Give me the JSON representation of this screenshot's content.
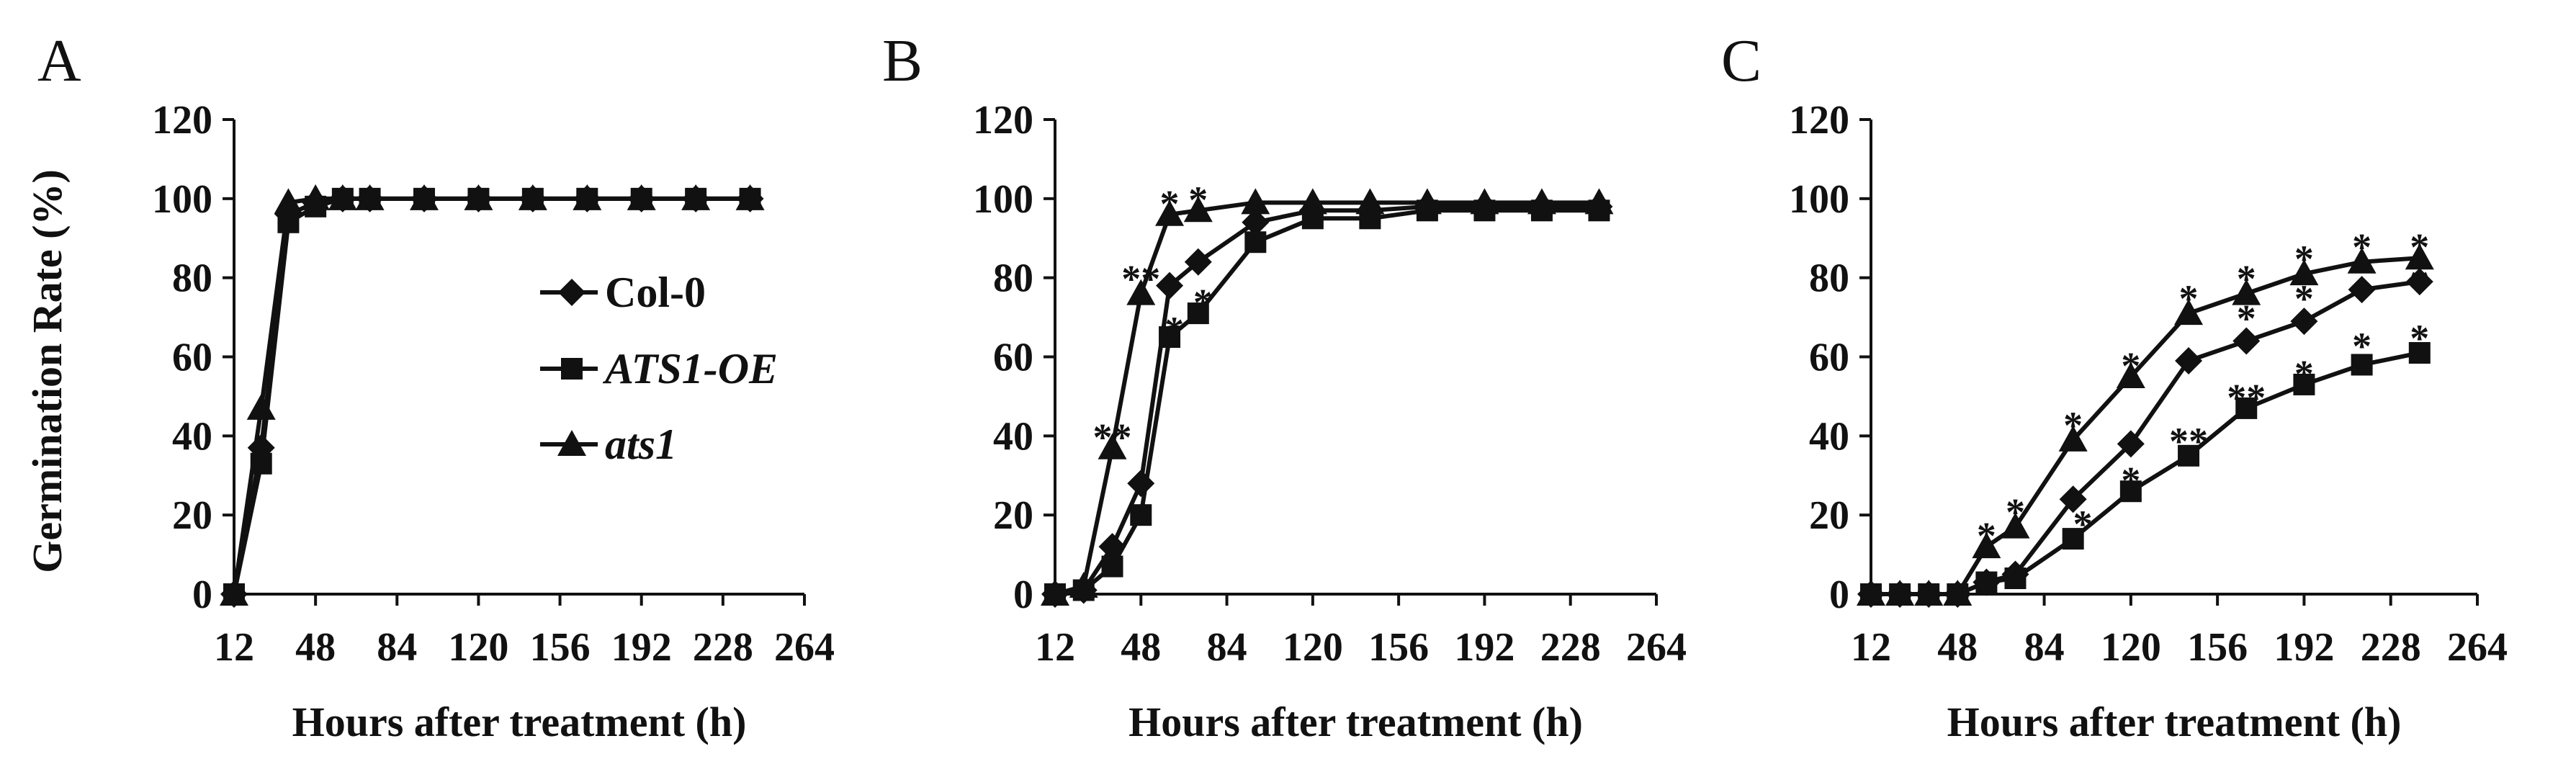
{
  "chart_data": [
    {
      "panel": "A",
      "type": "line",
      "ylabel": "Germination Rate (%)",
      "xlabel": "Hours after treatment (h)",
      "xlim": [
        12,
        264
      ],
      "ylim": [
        0,
        120
      ],
      "xticks": [
        "12",
        "48",
        "84",
        "120",
        "156",
        "192",
        "228",
        "264"
      ],
      "yticks": [
        "0",
        "20",
        "40",
        "60",
        "80",
        "100",
        "120"
      ],
      "legend": {
        "position": "center-left",
        "entries": [
          "Col-0",
          "ATS1-OE",
          "ats1"
        ]
      },
      "series": [
        {
          "name": "Col-0",
          "marker": "diamond",
          "x": [
            12,
            24,
            36,
            48,
            60,
            72,
            96,
            120,
            144,
            168,
            192,
            216,
            240
          ],
          "y": [
            0,
            37,
            96,
            99,
            100,
            100,
            100,
            100,
            100,
            100,
            100,
            100,
            100
          ]
        },
        {
          "name": "ATS1-OE",
          "marker": "square",
          "x": [
            12,
            24,
            36,
            48,
            60,
            72,
            96,
            120,
            144,
            168,
            192,
            216,
            240
          ],
          "y": [
            0,
            33,
            94,
            98,
            100,
            100,
            100,
            100,
            100,
            100,
            100,
            100,
            100
          ]
        },
        {
          "name": "ats1",
          "marker": "triangle",
          "x": [
            12,
            24,
            36,
            48,
            60,
            72,
            96,
            120,
            144,
            168,
            192,
            216,
            240
          ],
          "y": [
            0,
            47,
            99,
            100,
            100,
            100,
            100,
            100,
            100,
            100,
            100,
            100,
            100
          ]
        }
      ],
      "annotations": []
    },
    {
      "panel": "B",
      "type": "line",
      "xlabel": "Hours after treatment (h)",
      "xlim": [
        12,
        264
      ],
      "ylim": [
        0,
        120
      ],
      "xticks": [
        "12",
        "48",
        "84",
        "120",
        "156",
        "192",
        "228",
        "264"
      ],
      "yticks": [
        "0",
        "20",
        "40",
        "60",
        "80",
        "100",
        "120"
      ],
      "series": [
        {
          "name": "Col-0",
          "marker": "diamond",
          "x": [
            12,
            24,
            36,
            48,
            60,
            72,
            96,
            120,
            144,
            168,
            192,
            216,
            240
          ],
          "y": [
            0,
            1,
            12,
            28,
            78,
            84,
            94,
            97,
            97,
            98,
            98,
            98,
            98
          ]
        },
        {
          "name": "ATS1-OE",
          "marker": "square",
          "x": [
            12,
            24,
            36,
            48,
            60,
            72,
            96,
            120,
            144,
            168,
            192,
            216,
            240
          ],
          "y": [
            0,
            1,
            7,
            20,
            65,
            71,
            89,
            95,
            95,
            97,
            97,
            97,
            97
          ]
        },
        {
          "name": "ats1",
          "marker": "triangle",
          "x": [
            12,
            24,
            36,
            48,
            60,
            72,
            96,
            120,
            144,
            168,
            192,
            216,
            240
          ],
          "y": [
            0,
            2,
            37,
            76,
            96,
            97,
            99,
            99,
            99,
            99,
            99,
            99,
            99
          ]
        }
      ],
      "annotations": [
        {
          "text": "**",
          "x": 36,
          "y": 40
        },
        {
          "text": "**",
          "x": 48,
          "y": 80
        },
        {
          "text": "*",
          "x": 60,
          "y": 99
        },
        {
          "text": "*",
          "x": 72,
          "y": 100
        },
        {
          "text": "*",
          "x": 62,
          "y": 67
        },
        {
          "text": "*",
          "x": 74,
          "y": 74
        }
      ]
    },
    {
      "panel": "C",
      "type": "line",
      "xlabel": "Hours after treatment (h)",
      "xlim": [
        12,
        264
      ],
      "ylim": [
        0,
        120
      ],
      "xticks": [
        "12",
        "48",
        "84",
        "120",
        "156",
        "192",
        "228",
        "264"
      ],
      "yticks": [
        "0",
        "20",
        "40",
        "60",
        "80",
        "100",
        "120"
      ],
      "series": [
        {
          "name": "Col-0",
          "marker": "diamond",
          "x": [
            12,
            24,
            36,
            48,
            60,
            72,
            96,
            120,
            144,
            168,
            192,
            216,
            240
          ],
          "y": [
            0,
            0,
            0,
            0,
            3,
            5,
            24,
            38,
            59,
            64,
            69,
            77,
            79
          ]
        },
        {
          "name": "ATS1-OE",
          "marker": "square",
          "x": [
            12,
            24,
            36,
            48,
            60,
            72,
            96,
            120,
            144,
            168,
            192,
            216,
            240
          ],
          "y": [
            0,
            0,
            0,
            0,
            3,
            4,
            14,
            26,
            35,
            47,
            53,
            58,
            61
          ]
        },
        {
          "name": "ats1",
          "marker": "triangle",
          "x": [
            12,
            24,
            36,
            48,
            60,
            72,
            96,
            120,
            144,
            168,
            192,
            216,
            240
          ],
          "y": [
            0,
            0,
            0,
            0,
            12,
            17,
            39,
            55,
            71,
            76,
            81,
            84,
            85
          ]
        }
      ],
      "annotations": [
        {
          "text": "*",
          "x": 60,
          "y": 15
        },
        {
          "text": "*",
          "x": 72,
          "y": 21
        },
        {
          "text": "*",
          "x": 96,
          "y": 43
        },
        {
          "text": "*",
          "x": 100,
          "y": 18
        },
        {
          "text": "*",
          "x": 120,
          "y": 58
        },
        {
          "text": "*",
          "x": 120,
          "y": 29
        },
        {
          "text": "*",
          "x": 144,
          "y": 75
        },
        {
          "text": "**",
          "x": 144,
          "y": 39
        },
        {
          "text": "*",
          "x": 168,
          "y": 80
        },
        {
          "text": "*",
          "x": 168,
          "y": 70
        },
        {
          "text": "**",
          "x": 168,
          "y": 50
        },
        {
          "text": "*",
          "x": 192,
          "y": 85
        },
        {
          "text": "*",
          "x": 192,
          "y": 75
        },
        {
          "text": "*",
          "x": 192,
          "y": 56
        },
        {
          "text": "*",
          "x": 216,
          "y": 88
        },
        {
          "text": "*",
          "x": 216,
          "y": 63
        },
        {
          "text": "*",
          "x": 240,
          "y": 88
        },
        {
          "text": "*",
          "x": 240,
          "y": 79
        },
        {
          "text": "*",
          "x": 240,
          "y": 65
        }
      ]
    }
  ]
}
